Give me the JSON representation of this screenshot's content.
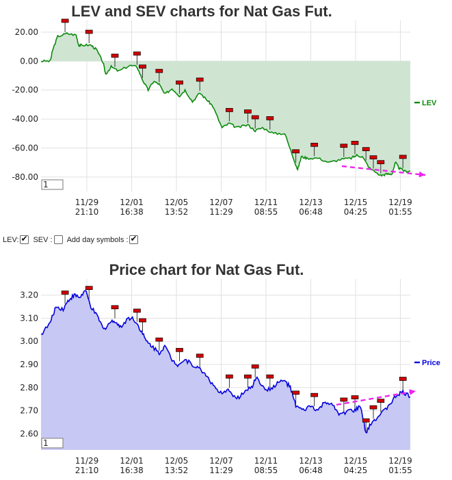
{
  "colors": {
    "lev_line": "#0a8a0a",
    "lev_fill": "#cfe5d2",
    "price_line": "#0000dd",
    "price_fill": "#c8c8f4",
    "marker": "#d40000",
    "trend_arrow": "#ee22ee",
    "grid": "#e0e0e0"
  },
  "controls": {
    "lev_label": "LEV:",
    "lev_checked": true,
    "sev_label": "SEV :",
    "sev_checked": false,
    "day_symbols_label": "Add day symbols :",
    "day_symbols_checked": true
  },
  "chart_data": [
    {
      "type": "line",
      "title": "LEV and SEV charts for Nat Gas Fut.",
      "legend_position": "right",
      "grid": true,
      "fill": "area-to-zero",
      "input_value": "1",
      "x_ticks": [
        "11/29 21:10",
        "12/01 16:38",
        "12/05 13:52",
        "12/07 11:29",
        "12/11 08:55",
        "12/13 06:48",
        "12/15 04:25",
        "12/19 01:55"
      ],
      "y_ticks": [
        20,
        0,
        -20,
        -40,
        -60,
        -80
      ],
      "ylim": [
        -90,
        28
      ],
      "xlim": [
        0,
        100
      ],
      "series": [
        {
          "name": "LEV",
          "x": [
            0,
            2.5,
            3.2,
            4.5,
            7,
            9.5,
            10.2,
            11,
            13.5,
            15,
            16.8,
            17.5,
            19,
            21,
            24,
            26,
            27.5,
            29,
            30.5,
            32,
            33.5,
            35.5,
            37.5,
            39,
            41,
            43,
            45,
            46.5,
            49,
            51,
            53,
            56,
            58,
            60,
            63,
            66,
            68.5,
            69.5,
            70.5,
            72,
            75,
            78,
            81,
            84,
            85.5,
            87,
            89,
            92,
            93.5,
            95,
            96,
            97,
            98.5,
            100
          ],
          "y": [
            0,
            0,
            8,
            17,
            19,
            18,
            11,
            11,
            11,
            8,
            -1,
            -9,
            -4,
            -7,
            -3,
            -4,
            -13,
            -20,
            -14,
            -16,
            -23,
            -19,
            -24,
            -20,
            -28,
            -22,
            -27,
            -31,
            -46,
            -43,
            -46,
            -44,
            -48,
            -46,
            -50,
            -50,
            -68,
            -75,
            -66,
            -67,
            -67,
            -70,
            -68,
            -67,
            -65,
            -66,
            -74,
            -79,
            -78,
            -78,
            -70,
            -74,
            -76,
            -76
          ]
        }
      ],
      "markers_x": [
        6.5,
        13,
        20,
        26,
        27.5,
        32,
        37.5,
        43,
        51,
        56,
        58,
        62,
        69,
        74,
        82,
        85,
        88,
        90,
        92,
        98
      ]
    },
    {
      "type": "area",
      "title": "Price chart for Nat Gas Fut.",
      "legend_position": "right",
      "grid": true,
      "input_value": "1",
      "x_ticks": [
        "11/29 21:10",
        "12/01 16:38",
        "12/05 13:52",
        "12/07 11:29",
        "12/11 08:55",
        "12/13 06:48",
        "12/15 04:25",
        "12/19 01:55"
      ],
      "y_ticks": [
        3.2,
        3.1,
        3.0,
        2.9,
        2.8,
        2.7,
        2.6
      ],
      "ylim": [
        2.53,
        3.27
      ],
      "xlim": [
        0,
        100
      ],
      "series": [
        {
          "name": "Price",
          "x": [
            0,
            2.5,
            4,
            6,
            7.5,
            9,
            10.5,
            12,
            13.5,
            15.5,
            17,
            18.5,
            20,
            21.5,
            23.5,
            25,
            27,
            28.5,
            30,
            32,
            33.5,
            35.5,
            37,
            39,
            41,
            43,
            45,
            47,
            49,
            51,
            53,
            55,
            57,
            58.5,
            60,
            62,
            64,
            66,
            67.5,
            69,
            71,
            73,
            75,
            77,
            79,
            81,
            83,
            85,
            86.5,
            88,
            89.5,
            91,
            93,
            95,
            96.5,
            98,
            100
          ],
          "y": [
            3.03,
            3.08,
            3.15,
            3.14,
            3.18,
            3.2,
            3.19,
            3.22,
            3.15,
            3.1,
            3.05,
            3.08,
            3.09,
            3.06,
            3.1,
            3.1,
            3.05,
            3.0,
            2.98,
            2.95,
            2.98,
            2.92,
            2.9,
            2.92,
            2.9,
            2.88,
            2.85,
            2.8,
            2.77,
            2.79,
            2.75,
            2.78,
            2.8,
            2.85,
            2.8,
            2.79,
            2.82,
            2.83,
            2.8,
            2.72,
            2.7,
            2.72,
            2.7,
            2.74,
            2.72,
            2.68,
            2.7,
            2.7,
            2.72,
            2.6,
            2.65,
            2.67,
            2.7,
            2.74,
            2.77,
            2.78,
            2.76
          ]
        }
      ],
      "markers_x": [
        6.5,
        13,
        20,
        26,
        27.5,
        32,
        37.5,
        43,
        51,
        56,
        58,
        62,
        69,
        74,
        82,
        85,
        88,
        90,
        92,
        98
      ]
    }
  ]
}
